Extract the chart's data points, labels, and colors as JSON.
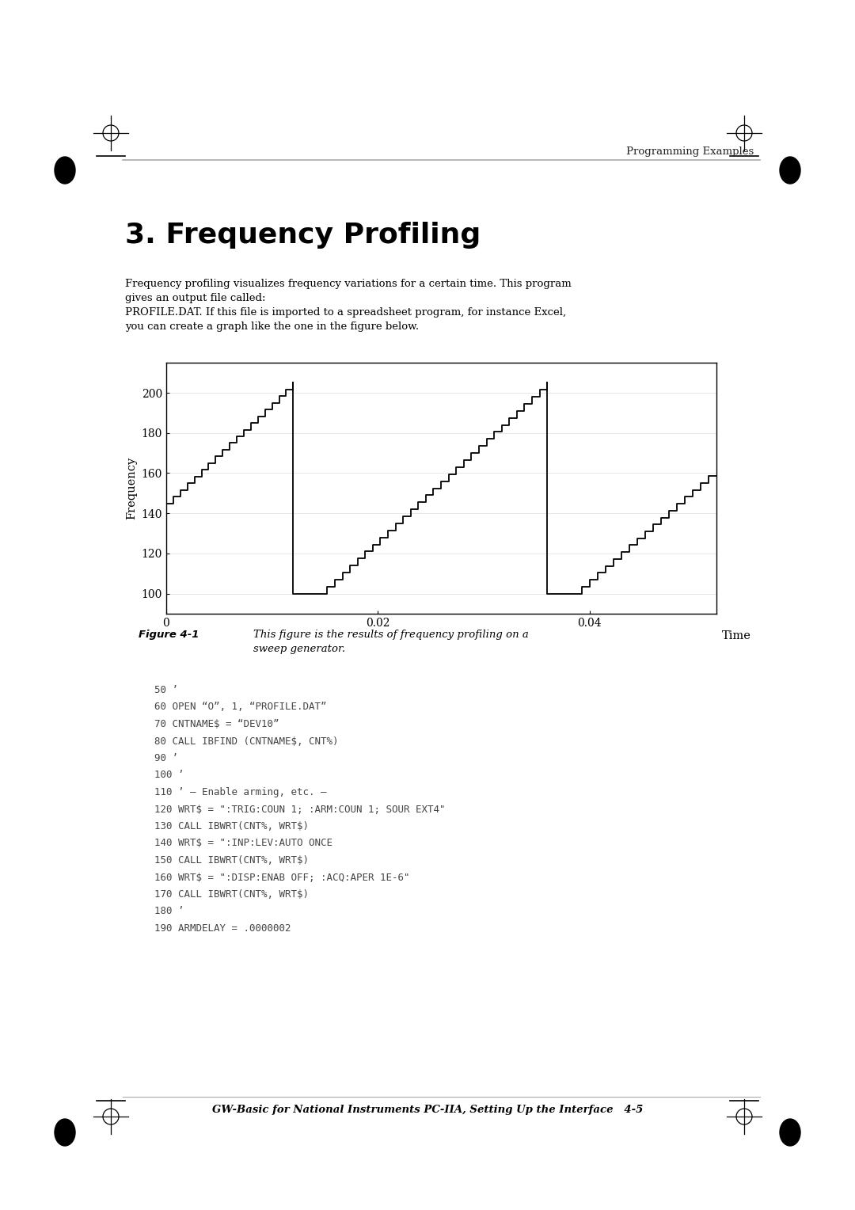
{
  "page_header": "Programming Examples",
  "section_title": "3. Frequency Profiling",
  "body_text_1a": "Frequency profiling visualizes frequency variations for a certain time. This program",
  "body_text_1b": "gives an output file called:",
  "body_text_2a": "PROFILE.DAT. If this file is imported to a spreadsheet program, for instance Excel,",
  "body_text_2b": "you can create a graph like the one in the figure below.",
  "figure_caption_bold": "Figure 4-1",
  "figure_caption_italic": "This figure is the results of frequency profiling on a",
  "figure_caption_italic2": "sweep generator.",
  "code_lines": [
    "50 ’",
    "60 OPEN “O”, 1, “PROFILE.DAT”",
    "70 CNTNAME$ = “DEV10”",
    "80 CALL IBFIND (CNTNAME$, CNT%)",
    "90 ’",
    "100 ’",
    "110 ’ — Enable arming, etc. —",
    "120 WRT$ = \":TRIG:COUN 1; :ARM:COUN 1; SOUR EXT4\"",
    "130 CALL IBWRT(CNT%, WRT$)",
    "140 WRT$ = \":INP:LEV:AUTO ONCE",
    "150 CALL IBWRT(CNT%, WRT$)",
    "160 WRT$ = \":DISP:ENAB OFF; :ACQ:APER 1E-6\"",
    "170 CALL IBWRT(CNT%, WRT$)",
    "180 ’",
    "190 ARMDELAY = .0000002"
  ],
  "footer_text": "GW-Basic for National Instruments PC-IIA, Setting Up the Interface   4-5",
  "graph": {
    "xlabel": "Time",
    "ylabel": "Frequency",
    "yticks": [
      100,
      120,
      140,
      160,
      180,
      200
    ],
    "xtick_labels": [
      "0",
      "0.02",
      "0.04"
    ],
    "xtick_vals": [
      0.0,
      0.02,
      0.04
    ],
    "xlim": [
      0,
      0.052
    ],
    "ylim": [
      90,
      215
    ],
    "line_color": "#000000"
  },
  "bg_color": "#ffffff"
}
